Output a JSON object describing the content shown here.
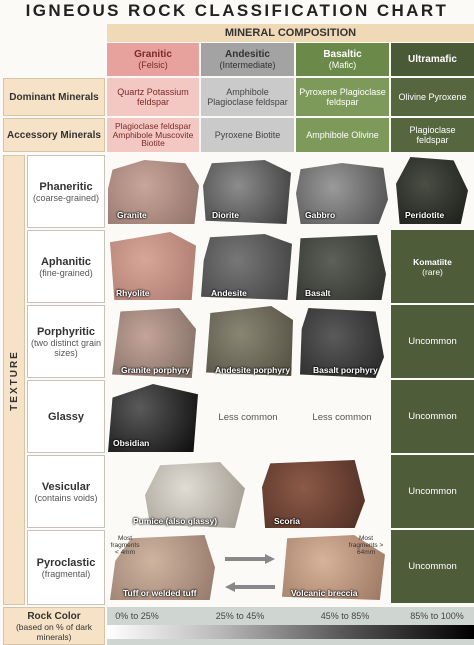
{
  "title": "IGNEOUS ROCK CLASSIFICATION CHART",
  "composition_header": "MINERAL COMPOSITION",
  "columns": [
    {
      "name": "Granitic",
      "sub": "(Felsic)"
    },
    {
      "name": "Andesitic",
      "sub": "(Intermediate)"
    },
    {
      "name": "Basaltic",
      "sub": "(Mafic)"
    },
    {
      "name": "Ultramafic"
    }
  ],
  "mineral_rows": [
    {
      "label": "Dominant Minerals",
      "cells": [
        "Quartz Potassium feldspar",
        "Amphibole Plagioclase feldspar",
        "Pyroxene Plagioclase feldspar",
        "Olivine Pyroxene"
      ]
    },
    {
      "label": "Accessory Minerals",
      "cells": [
        "Plagioclase feldspar Amphibole Muscovite Biotite",
        "Pyroxene Biotite",
        "Amphibole Olivine",
        "Plagioclase feldspar"
      ]
    }
  ],
  "texture_label": "TEXTURE",
  "texture_rows": [
    {
      "name": "Phaneritic",
      "sub": "(coarse-grained)",
      "rocks": [
        "Granite",
        "Diorite",
        "Gabbro",
        "Peridotite"
      ]
    },
    {
      "name": "Aphanitic",
      "sub": "(fine-grained)",
      "rocks": [
        "Rhyolite",
        "Andesite",
        "Basalt"
      ],
      "ultramafic": "Komatiite",
      "ultramafic_sub": "(rare)"
    },
    {
      "name": "Porphyritic",
      "sub": "(two distinct grain sizes)",
      "rocks": [
        "Granite porphyry",
        "Andesite porphyry",
        "Basalt porphyry"
      ],
      "ultramafic": "Uncommon"
    },
    {
      "name": "Glassy",
      "rocks": [
        "Obsidian"
      ],
      "notes": [
        "Less common",
        "Less common"
      ],
      "ultramafic": "Uncommon"
    },
    {
      "name": "Vesicular",
      "sub": "(contains voids)",
      "rocks": [
        "Pumice (also glassy)",
        "Scoria"
      ],
      "ultramafic": "Uncommon"
    },
    {
      "name": "Pyroclastic",
      "sub": "(fragmental)",
      "rocks": [
        "Tuff or welded tuff",
        "Volcanic breccia"
      ],
      "notes": [
        "Most fragments < 4mm",
        "Most fragments > 64mm"
      ],
      "ultramafic": "Uncommon"
    }
  ],
  "rock_color": {
    "label": "Rock Color",
    "sub": "(based on % of dark minerals)",
    "ranges": [
      "0% to 25%",
      "25% to 45%",
      "45% to 85%",
      "85% to 100%"
    ]
  }
}
